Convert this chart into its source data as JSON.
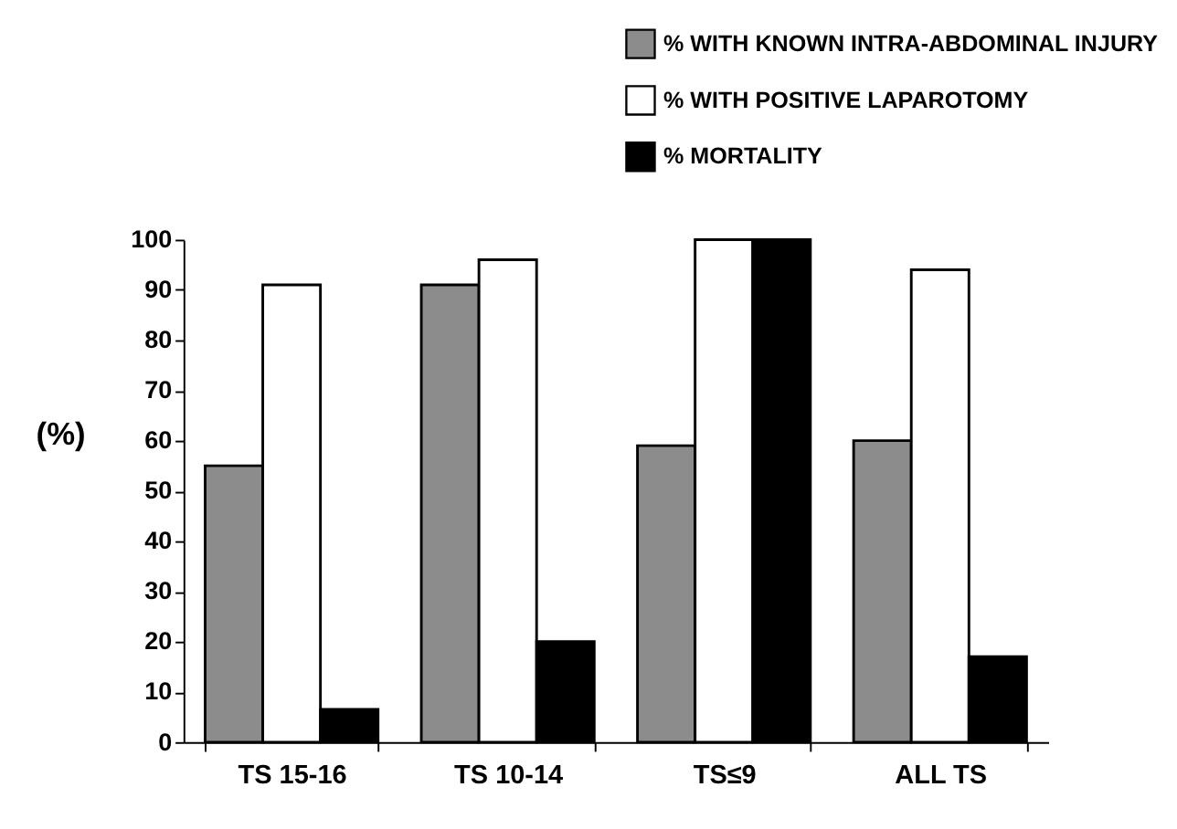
{
  "chart_data": {
    "type": "bar",
    "ylabel": "(%)",
    "categories": [
      "TS 15-16",
      "TS 10-14",
      "TS≤9",
      "ALL TS"
    ],
    "series": [
      {
        "name": "% WITH KNOWN INTRA-ABDOMINAL INJURY",
        "color": "#8c8c8c",
        "values": [
          55,
          91,
          59,
          60
        ]
      },
      {
        "name": "% WITH POSITIVE LAPAROTOMY",
        "color": "#ffffff",
        "values": [
          91,
          96,
          100,
          94
        ]
      },
      {
        "name": "% MORTALITY",
        "color": "#000000",
        "values": [
          6.5,
          20,
          100,
          17
        ]
      }
    ],
    "ylim": [
      0,
      100
    ],
    "yticks": [
      0,
      10,
      20,
      30,
      40,
      50,
      60,
      70,
      80,
      90,
      100
    ],
    "grid": false,
    "legend": "top"
  }
}
